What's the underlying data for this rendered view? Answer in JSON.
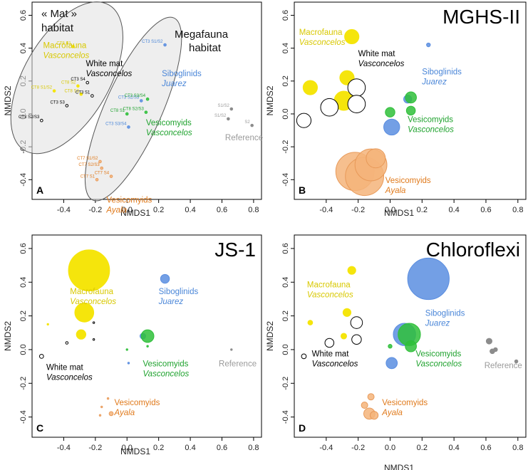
{
  "colors": {
    "macrofauna": "#f5e50c",
    "white_mat": "#000000",
    "siboglinids": "#5b8ee0",
    "vesicomyids_vasconcelos": "#2fbf3a",
    "vesicomyids_ayala": "#f5b47a",
    "reference": "#8c8c8c",
    "macrofauna_text": "#d8c800",
    "siboglinids_text": "#4a86d8",
    "vesicomyids_vasconcelos_text": "#1fa22e",
    "vesicomyids_ayala_text": "#e07a1c",
    "reference_text": "#9a9a9a"
  },
  "chart_data": [
    {
      "panel": "A",
      "type": "scatter",
      "title": "",
      "xlabel": "NMDS1",
      "ylabel": "NMDS2",
      "xlim": [
        -0.6,
        0.85
      ],
      "ylim": [
        -0.52,
        0.68
      ],
      "xticks": [
        "-0.4",
        "-0.2",
        "0.0",
        "0.2",
        "0.4",
        "0.6",
        "0.8"
      ],
      "yticks": [
        "-0.4",
        "-0.2",
        "0.0",
        "0.2",
        "0.4",
        "0.6"
      ],
      "habitat_labels": [
        "« Mat »",
        "habitat",
        "Megafauna",
        "habitat"
      ],
      "group_labels": [
        {
          "group": "macrofauna",
          "line1": "Macrofauna",
          "line2": "Vasconcelos"
        },
        {
          "group": "white_mat",
          "line1": "White mat",
          "line2": "Vasconcelos"
        },
        {
          "group": "siboglinids",
          "line1": "Siboglinids",
          "line2": "Juarez"
        },
        {
          "group": "vesicomyids_vasconcelos",
          "line1": "Vesicomyids",
          "line2": "Vasconcelos"
        },
        {
          "group": "vesicomyids_ayala",
          "line1": "Vesicomyids",
          "line2": "Ayala"
        },
        {
          "group": "reference",
          "line1": "Reference",
          "line2": ""
        }
      ],
      "sample_labels": [
        {
          "text": "CT8 S1",
          "group": "macrofauna"
        },
        {
          "text": "CT8 S2",
          "group": "macrofauna"
        },
        {
          "text": "CT8 S3",
          "group": "macrofauna"
        },
        {
          "text": "CT8 S1/S2",
          "group": "macrofauna"
        },
        {
          "text": "CT3 S4",
          "group": "white_mat"
        },
        {
          "text": "CT3 S3",
          "group": "white_mat"
        },
        {
          "text": "CT3 S1",
          "group": "white_mat"
        },
        {
          "text": "CT3 S2/S3",
          "group": "white_mat"
        },
        {
          "text": "CT3 S1/S2",
          "group": "siboglinids"
        },
        {
          "text": "CT3 S2/S3",
          "group": "siboglinids"
        },
        {
          "text": "CT3 S3/S4",
          "group": "vesicomyids_vasconcelos"
        },
        {
          "text": "CT8 S1",
          "group": "vesicomyids_vasconcelos"
        },
        {
          "text": "CT8 S2/S3",
          "group": "vesicomyids_vasconcelos"
        },
        {
          "text": "CT3 S3/S4",
          "group": "siboglinids"
        },
        {
          "text": "CT7 S1/S2",
          "group": "vesicomyids_ayala"
        },
        {
          "text": "CT7 S2/S3",
          "group": "vesicomyids_ayala"
        },
        {
          "text": "CT7 S4",
          "group": "vesicomyids_ayala"
        },
        {
          "text": "CT7 S1",
          "group": "vesicomyids_ayala"
        },
        {
          "text": "S1/S2",
          "group": "reference"
        },
        {
          "text": "S1/S2",
          "group": "reference"
        },
        {
          "text": "S2",
          "group": "reference"
        }
      ],
      "points": [
        {
          "group": "macrofauna",
          "x": -0.34,
          "y": 0.41,
          "fill": true
        },
        {
          "group": "macrofauna",
          "x": -0.31,
          "y": 0.17,
          "fill": true
        },
        {
          "group": "macrofauna",
          "x": -0.29,
          "y": 0.12,
          "fill": true
        },
        {
          "group": "macrofauna",
          "x": -0.46,
          "y": 0.14,
          "fill": true
        },
        {
          "group": "white_mat",
          "x": -0.25,
          "y": 0.19,
          "fill": false
        },
        {
          "group": "white_mat",
          "x": -0.38,
          "y": 0.05,
          "fill": false
        },
        {
          "group": "white_mat",
          "x": -0.22,
          "y": 0.11,
          "fill": false
        },
        {
          "group": "white_mat",
          "x": -0.54,
          "y": -0.04,
          "fill": false
        },
        {
          "group": "siboglinids",
          "x": 0.24,
          "y": 0.42,
          "fill": true
        },
        {
          "group": "siboglinids",
          "x": 0.09,
          "y": 0.08,
          "fill": true
        },
        {
          "group": "vesicomyids_vasconcelos",
          "x": 0.13,
          "y": 0.09,
          "fill": true
        },
        {
          "group": "vesicomyids_vasconcelos",
          "x": 0.0,
          "y": 0.0,
          "fill": true
        },
        {
          "group": "vesicomyids_vasconcelos",
          "x": 0.12,
          "y": 0.01,
          "fill": true
        },
        {
          "group": "siboglinids",
          "x": 0.01,
          "y": -0.08,
          "fill": true
        },
        {
          "group": "vesicomyids_ayala",
          "x": -0.17,
          "y": -0.29,
          "fill": true
        },
        {
          "group": "vesicomyids_ayala",
          "x": -0.16,
          "y": -0.33,
          "fill": true
        },
        {
          "group": "vesicomyids_ayala",
          "x": -0.1,
          "y": -0.38,
          "fill": true
        },
        {
          "group": "vesicomyids_ayala",
          "x": -0.19,
          "y": -0.4,
          "fill": true
        },
        {
          "group": "reference",
          "x": 0.66,
          "y": 0.03,
          "fill": true
        },
        {
          "group": "reference",
          "x": 0.64,
          "y": -0.03,
          "fill": true
        },
        {
          "group": "reference",
          "x": 0.79,
          "y": -0.07,
          "fill": true
        }
      ]
    },
    {
      "panel": "B",
      "type": "scatter",
      "title": "MGHS-II",
      "xlabel": "NMDS1",
      "ylabel": "NMDS2",
      "xlim": [
        -0.6,
        0.85
      ],
      "ylim": [
        -0.52,
        0.68
      ],
      "xticks": [
        "-0.4",
        "-0.2",
        "0.0",
        "0.2",
        "0.4",
        "0.6",
        "0.8"
      ],
      "yticks": [
        "-0.4",
        "-0.2",
        "0.0",
        "0.2",
        "0.4",
        "0.6"
      ],
      "group_labels": [
        {
          "group": "macrofauna",
          "line1": "Macrofauna",
          "line2": "Vasconcelos"
        },
        {
          "group": "white_mat",
          "line1": "White mat",
          "line2": "Vasconcelos"
        },
        {
          "group": "siboglinids",
          "line1": "Siboglinids",
          "line2": "Juarez"
        },
        {
          "group": "vesicomyids_vasconcelos",
          "line1": "Vesicomyids",
          "line2": "Vasconcelos"
        },
        {
          "group": "vesicomyids_ayala",
          "line1": "Vesicomyids",
          "line2": "Ayala"
        }
      ],
      "points": [
        {
          "group": "macrofauna",
          "x": -0.24,
          "y": 0.47,
          "r": 0.045
        },
        {
          "group": "macrofauna",
          "x": -0.27,
          "y": 0.22,
          "r": 0.045
        },
        {
          "group": "macrofauna",
          "x": -0.5,
          "y": 0.16,
          "r": 0.045
        },
        {
          "group": "macrofauna",
          "x": -0.29,
          "y": 0.08,
          "r": 0.06
        },
        {
          "group": "white_mat",
          "x": -0.21,
          "y": 0.16,
          "r": 0.055,
          "fill": false
        },
        {
          "group": "white_mat",
          "x": -0.21,
          "y": 0.06,
          "r": 0.055,
          "fill": false
        },
        {
          "group": "white_mat",
          "x": -0.38,
          "y": 0.04,
          "r": 0.055,
          "fill": false
        },
        {
          "group": "white_mat",
          "x": -0.54,
          "y": -0.04,
          "r": 0.045,
          "fill": false
        },
        {
          "group": "siboglinids",
          "x": 0.24,
          "y": 0.42,
          "r": 0.012
        },
        {
          "group": "siboglinids",
          "x": 0.11,
          "y": 0.09,
          "r": 0.025
        },
        {
          "group": "siboglinids",
          "x": 0.01,
          "y": -0.08,
          "r": 0.05
        },
        {
          "group": "vesicomyids_vasconcelos",
          "x": 0.13,
          "y": 0.1,
          "r": 0.035
        },
        {
          "group": "vesicomyids_vasconcelos",
          "x": 0.0,
          "y": 0.01,
          "r": 0.03
        },
        {
          "group": "vesicomyids_vasconcelos",
          "x": 0.13,
          "y": 0.02,
          "r": 0.028
        },
        {
          "group": "vesicomyids_ayala",
          "x": -0.22,
          "y": -0.35,
          "r": 0.12
        },
        {
          "group": "vesicomyids_ayala",
          "x": -0.16,
          "y": -0.38,
          "r": 0.12
        },
        {
          "group": "vesicomyids_ayala",
          "x": -0.12,
          "y": -0.31,
          "r": 0.1
        },
        {
          "group": "vesicomyids_ayala",
          "x": -0.09,
          "y": -0.27,
          "r": 0.06
        }
      ]
    },
    {
      "panel": "C",
      "type": "scatter",
      "title": "JS-1",
      "xlabel": "NMDS1",
      "ylabel": "NMDS2",
      "xlim": [
        -0.6,
        0.85
      ],
      "ylim": [
        -0.52,
        0.68
      ],
      "xticks": [
        "-0.4",
        "-0.2",
        "0.0",
        "0.2",
        "0.4",
        "0.6",
        "0.8"
      ],
      "yticks": [
        "-0.4",
        "-0.2",
        "0.0",
        "0.2",
        "0.4",
        "0.6"
      ],
      "group_labels": [
        {
          "group": "macrofauna",
          "line1": "Macrofauna",
          "line2": "Vasconcelos"
        },
        {
          "group": "white_mat",
          "line1": "White mat",
          "line2": "Vasconcelos"
        },
        {
          "group": "siboglinids",
          "line1": "Siboglinids",
          "line2": "Juarez"
        },
        {
          "group": "vesicomyids_vasconcelos",
          "line1": "Vesicomyids",
          "line2": "Vasconcelos"
        },
        {
          "group": "vesicomyids_ayala",
          "line1": "Vesicomyids",
          "line2": "Ayala"
        },
        {
          "group": "reference",
          "line1": "Reference",
          "line2": ""
        }
      ],
      "points": [
        {
          "group": "macrofauna",
          "x": -0.24,
          "y": 0.47,
          "r": 0.13
        },
        {
          "group": "macrofauna",
          "x": -0.27,
          "y": 0.22,
          "r": 0.06
        },
        {
          "group": "macrofauna",
          "x": -0.29,
          "y": 0.09,
          "r": 0.03
        },
        {
          "group": "macrofauna",
          "x": -0.5,
          "y": 0.15,
          "r": 0.004
        },
        {
          "group": "white_mat",
          "x": -0.21,
          "y": 0.16,
          "r": 0.004,
          "fill": false
        },
        {
          "group": "white_mat",
          "x": -0.21,
          "y": 0.06,
          "r": 0.004,
          "fill": false
        },
        {
          "group": "white_mat",
          "x": -0.38,
          "y": 0.04,
          "r": 0.008,
          "fill": false
        },
        {
          "group": "white_mat",
          "x": -0.54,
          "y": -0.04,
          "r": 0.013,
          "fill": false
        },
        {
          "group": "siboglinids",
          "x": 0.24,
          "y": 0.42,
          "r": 0.028
        },
        {
          "group": "siboglinids",
          "x": 0.1,
          "y": 0.08,
          "r": 0.018
        },
        {
          "group": "siboglinids",
          "x": 0.01,
          "y": -0.08,
          "r": 0.004
        },
        {
          "group": "vesicomyids_vasconcelos",
          "x": 0.13,
          "y": 0.08,
          "r": 0.04
        },
        {
          "group": "vesicomyids_vasconcelos",
          "x": 0.0,
          "y": 0.0,
          "r": 0.003
        },
        {
          "group": "vesicomyids_vasconcelos",
          "x": 0.13,
          "y": 0.02,
          "r": 0.004
        },
        {
          "group": "vesicomyids_ayala",
          "x": -0.1,
          "y": -0.38,
          "r": 0.013
        },
        {
          "group": "vesicomyids_ayala",
          "x": -0.16,
          "y": -0.34,
          "r": 0.004
        },
        {
          "group": "vesicomyids_ayala",
          "x": -0.12,
          "y": -0.29,
          "r": 0.004
        },
        {
          "group": "vesicomyids_ayala",
          "x": -0.17,
          "y": -0.39,
          "r": 0.004
        },
        {
          "group": "reference",
          "x": 0.66,
          "y": 0.0,
          "r": 0.002
        }
      ]
    },
    {
      "panel": "D",
      "type": "scatter",
      "title": "Chloroflexi",
      "xlabel": "NMDS1",
      "ylabel": "NMDS2",
      "xlim": [
        -0.6,
        0.85
      ],
      "ylim": [
        -0.52,
        0.68
      ],
      "xticks": [
        "-0.4",
        "-0.2",
        "0.0",
        "0.2",
        "0.4",
        "0.6",
        "0.8"
      ],
      "yticks": [
        "-0.4",
        "-0.2",
        "0.0",
        "0.2",
        "0.4",
        "0.6"
      ],
      "group_labels": [
        {
          "group": "macrofauna",
          "line1": "Macrofauna",
          "line2": "Vasconcelos"
        },
        {
          "group": "white_mat",
          "line1": "White mat",
          "line2": "Vasconcelos"
        },
        {
          "group": "siboglinids",
          "line1": "Siboglinids",
          "line2": "Juarez"
        },
        {
          "group": "vesicomyids_vasconcelos",
          "line1": "Vesicomyids",
          "line2": "Vasconcelos"
        },
        {
          "group": "vesicomyids_ayala",
          "line1": "Vesicomyids",
          "line2": "Ayala"
        },
        {
          "group": "reference",
          "line1": "Reference",
          "line2": ""
        }
      ],
      "points": [
        {
          "group": "macrofauna",
          "x": -0.24,
          "y": 0.47,
          "r": 0.025
        },
        {
          "group": "macrofauna",
          "x": -0.27,
          "y": 0.22,
          "r": 0.025
        },
        {
          "group": "macrofauna",
          "x": -0.5,
          "y": 0.16,
          "r": 0.015
        },
        {
          "group": "macrofauna",
          "x": -0.29,
          "y": 0.08,
          "r": 0.018
        },
        {
          "group": "white_mat",
          "x": -0.21,
          "y": 0.16,
          "r": 0.037,
          "fill": false
        },
        {
          "group": "white_mat",
          "x": -0.21,
          "y": 0.06,
          "r": 0.03,
          "fill": false
        },
        {
          "group": "white_mat",
          "x": -0.38,
          "y": 0.04,
          "r": 0.028,
          "fill": false
        },
        {
          "group": "white_mat",
          "x": -0.54,
          "y": -0.04,
          "r": 0.015,
          "fill": false
        },
        {
          "group": "siboglinids",
          "x": 0.24,
          "y": 0.42,
          "r": 0.13
        },
        {
          "group": "siboglinids",
          "x": 0.09,
          "y": 0.09,
          "r": 0.07
        },
        {
          "group": "siboglinids",
          "x": 0.01,
          "y": -0.08,
          "r": 0.035
        },
        {
          "group": "vesicomyids_vasconcelos",
          "x": 0.12,
          "y": 0.09,
          "r": 0.07
        },
        {
          "group": "vesicomyids_vasconcelos",
          "x": 0.0,
          "y": 0.02,
          "r": 0.012
        },
        {
          "group": "vesicomyids_vasconcelos",
          "x": 0.13,
          "y": 0.02,
          "r": 0.035
        },
        {
          "group": "vesicomyids_ayala",
          "x": -0.16,
          "y": -0.33,
          "r": 0.02
        },
        {
          "group": "vesicomyids_ayala",
          "x": -0.12,
          "y": -0.28,
          "r": 0.02
        },
        {
          "group": "vesicomyids_ayala",
          "x": -0.13,
          "y": -0.38,
          "r": 0.035
        },
        {
          "group": "vesicomyids_ayala",
          "x": -0.1,
          "y": -0.39,
          "r": 0.025
        },
        {
          "group": "reference",
          "x": 0.62,
          "y": 0.05,
          "r": 0.018
        },
        {
          "group": "reference",
          "x": 0.64,
          "y": -0.01,
          "r": 0.015
        },
        {
          "group": "reference",
          "x": 0.66,
          "y": 0.0,
          "r": 0.012
        },
        {
          "group": "reference",
          "x": 0.79,
          "y": -0.07,
          "r": 0.01
        }
      ]
    }
  ]
}
